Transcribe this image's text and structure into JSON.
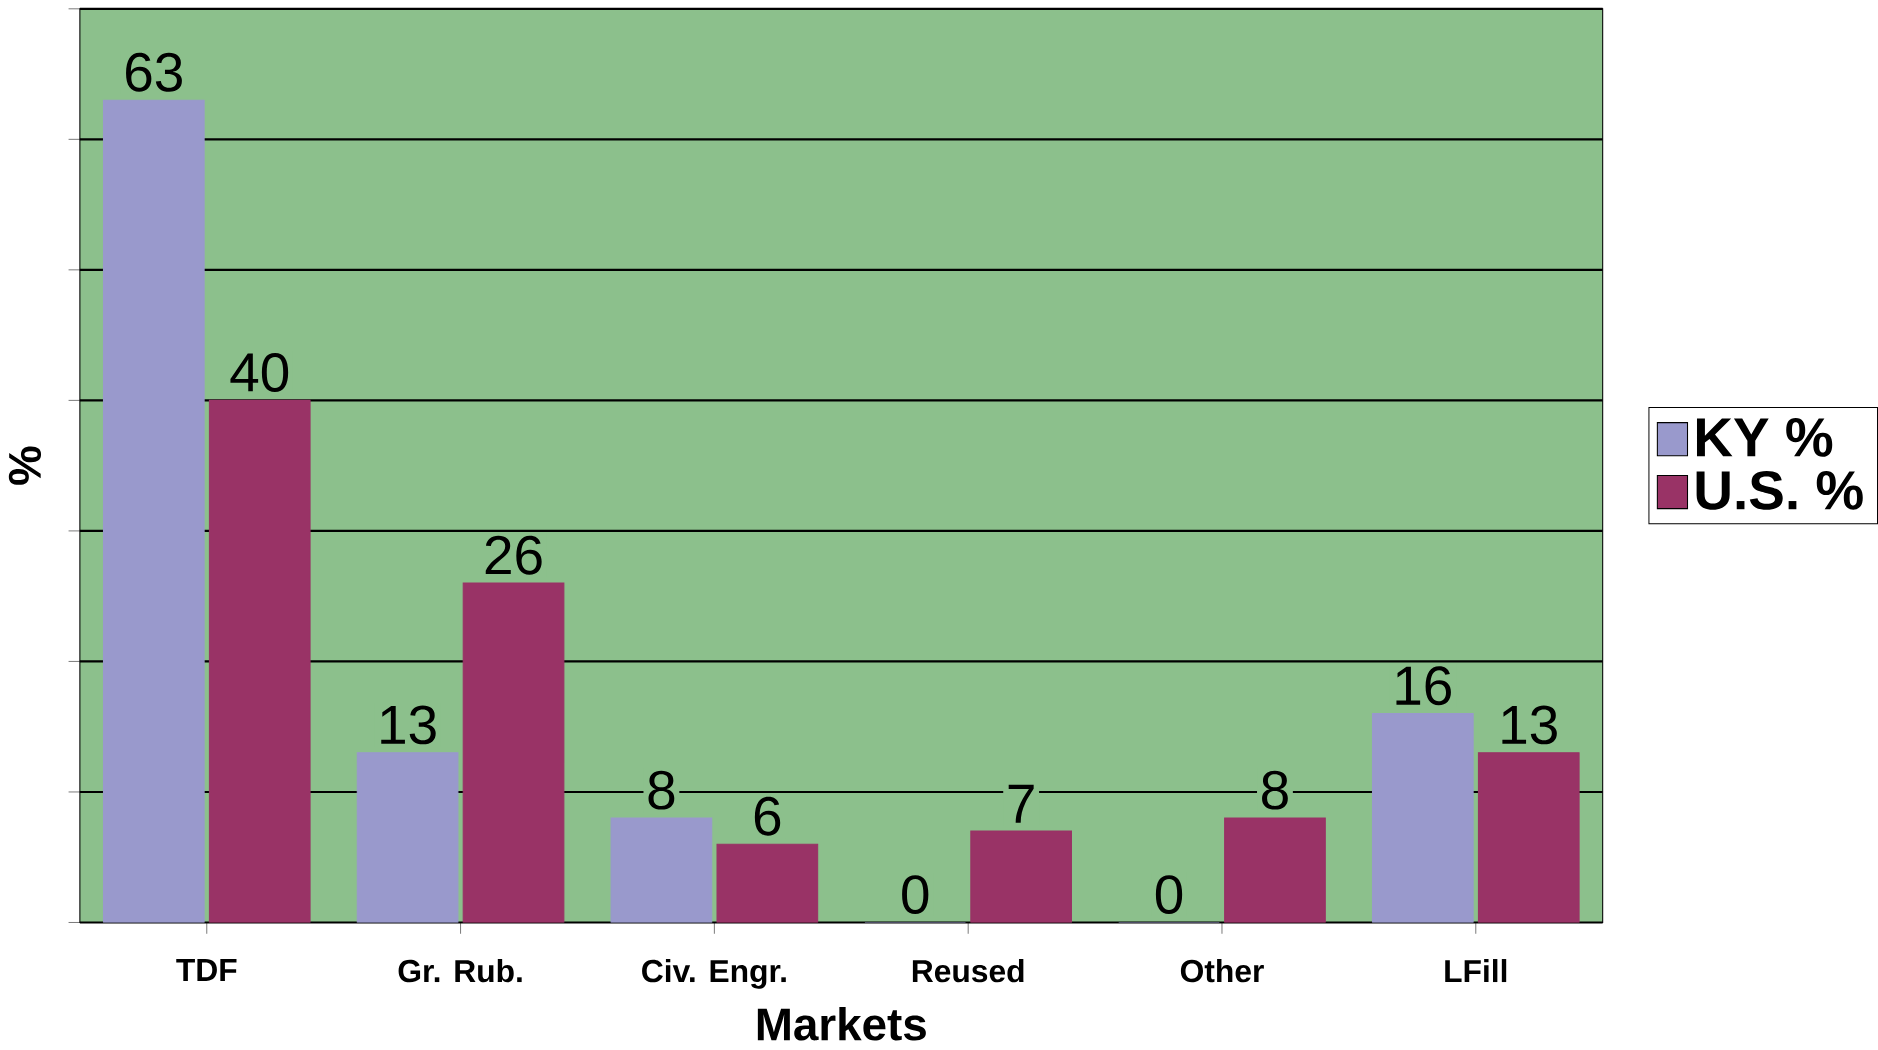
{
  "chart_data": {
    "type": "bar",
    "xlabel": "Markets",
    "ylabel": "%",
    "categories": [
      "TDF",
      "Gr. Rub.",
      "Civ. Engr.",
      "Reused",
      "Other",
      "LFill"
    ],
    "series": [
      {
        "name": "KY %",
        "color": "#9999cc",
        "values": [
          63,
          13,
          8,
          0,
          0,
          16
        ]
      },
      {
        "name": "U.S. %",
        "color": "#993366",
        "values": [
          40,
          26,
          6,
          7,
          8,
          13
        ]
      }
    ],
    "ylim": [
      0,
      70
    ],
    "yticks": [
      {
        "value": 0,
        "label": null
      },
      {
        "value": 10,
        "label": null
      },
      {
        "value": 20,
        "label": null
      },
      {
        "value": 30,
        "label": null
      },
      {
        "value": 40,
        "label": null
      },
      {
        "value": 50,
        "label": null
      },
      {
        "value": 60,
        "label": null
      },
      {
        "value": 70,
        "label": null
      }
    ],
    "tick_labels": "x",
    "grid": "y",
    "legend": "right",
    "data_labels": true
  }
}
